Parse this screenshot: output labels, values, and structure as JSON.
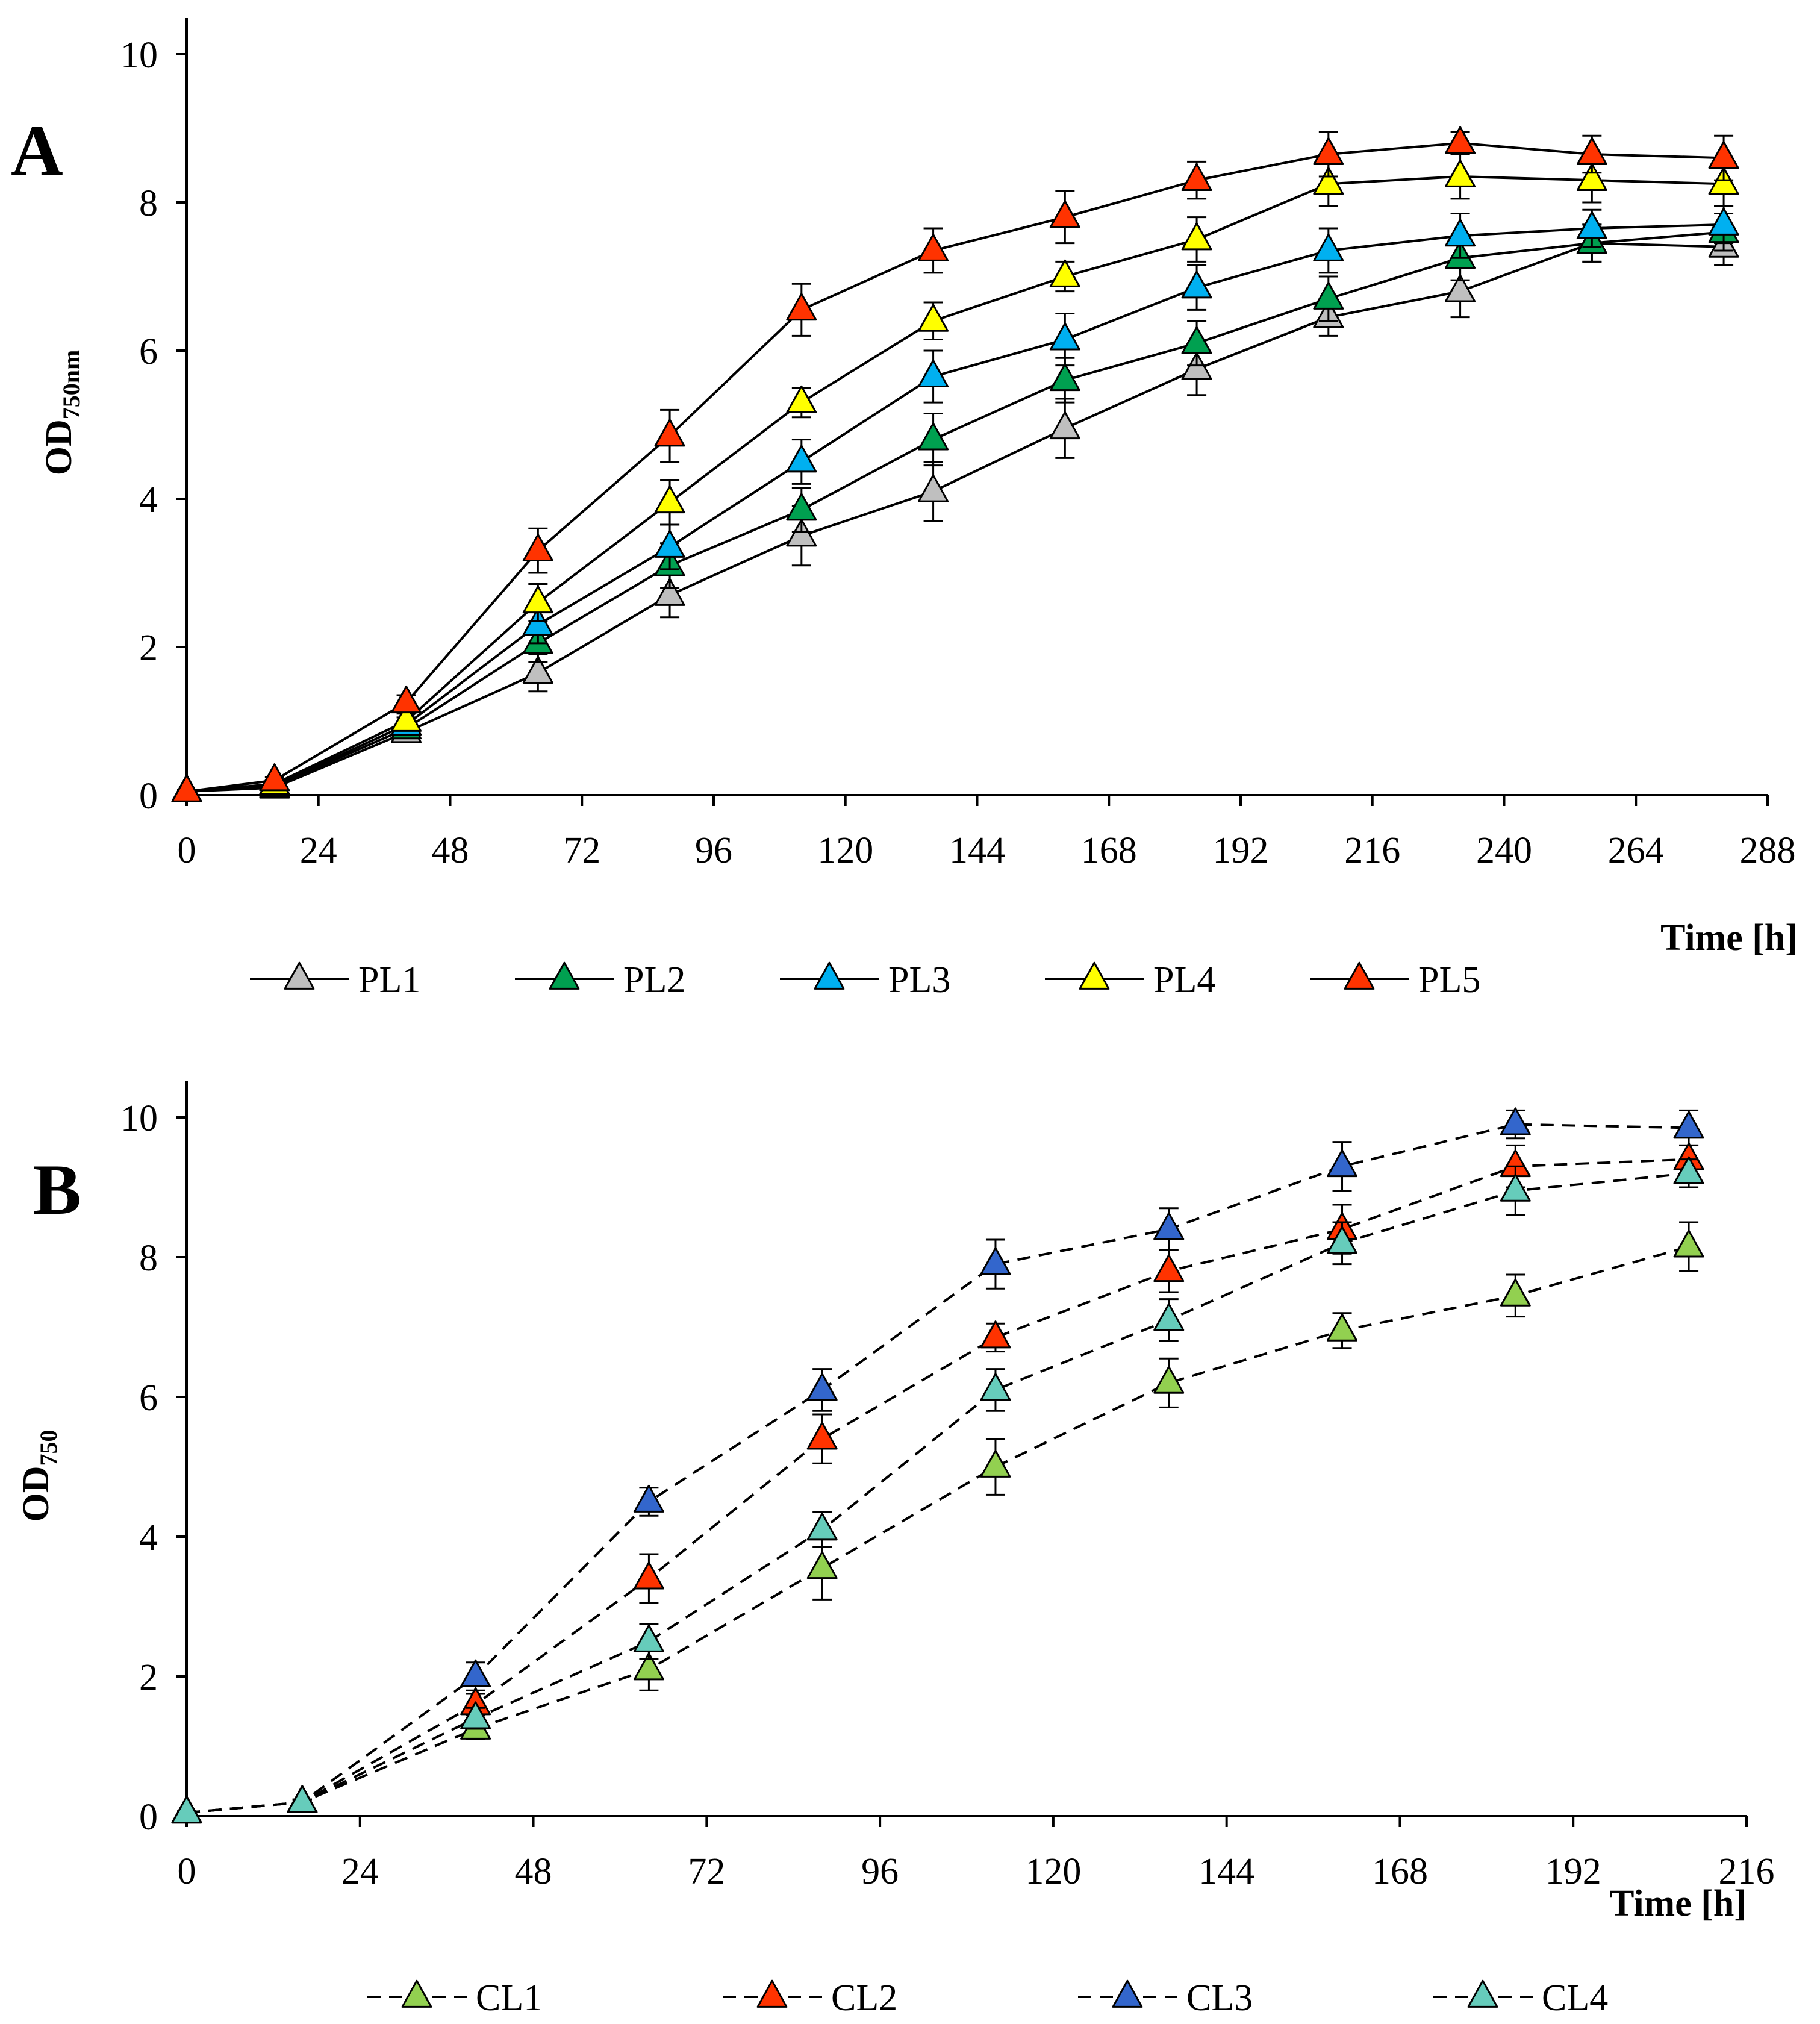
{
  "chart_data": [
    {
      "panel": "A",
      "type": "line",
      "ylabel": "OD",
      "ylabel_sub": "750nm",
      "xlabel": "Time [h]",
      "xlim": [
        0,
        288
      ],
      "ylim": [
        0,
        10
      ],
      "xticks": [
        0,
        24,
        48,
        72,
        96,
        120,
        144,
        168,
        192,
        216,
        240,
        264,
        288
      ],
      "yticks": [
        0,
        2,
        4,
        6,
        8,
        10
      ],
      "line_style": "solid",
      "x": [
        0,
        16,
        40,
        64,
        88,
        112,
        136,
        160,
        184,
        208,
        232,
        256,
        280
      ],
      "series": [
        {
          "name": "PL1",
          "color": "#bfbfbf",
          "values": [
            0.05,
            0.1,
            0.85,
            1.65,
            2.7,
            3.5,
            4.1,
            4.95,
            5.75,
            6.45,
            6.8,
            7.45,
            7.4
          ],
          "errors": [
            0.02,
            0.03,
            0.1,
            0.25,
            0.3,
            0.4,
            0.4,
            0.4,
            0.35,
            0.25,
            0.35,
            0.25,
            0.25
          ]
        },
        {
          "name": "PL2",
          "color": "#00a050",
          "values": [
            0.05,
            0.12,
            0.9,
            2.05,
            3.1,
            3.85,
            4.8,
            5.6,
            6.1,
            6.7,
            7.25,
            7.45,
            7.6
          ],
          "errors": [
            0.02,
            0.03,
            0.1,
            0.25,
            0.3,
            0.3,
            0.35,
            0.3,
            0.3,
            0.3,
            0.3,
            0.25,
            0.25
          ]
        },
        {
          "name": "PL3",
          "color": "#00b0f0",
          "values": [
            0.05,
            0.13,
            0.95,
            2.3,
            3.35,
            4.5,
            5.65,
            6.15,
            6.85,
            7.35,
            7.55,
            7.65,
            7.7
          ],
          "errors": [
            0.02,
            0.03,
            0.1,
            0.25,
            0.3,
            0.3,
            0.35,
            0.35,
            0.3,
            0.3,
            0.3,
            0.25,
            0.25
          ]
        },
        {
          "name": "PL4",
          "color": "#ffff00",
          "values": [
            0.05,
            0.15,
            1.0,
            2.6,
            3.95,
            5.3,
            6.4,
            7.0,
            7.5,
            8.25,
            8.35,
            8.3,
            8.25
          ],
          "errors": [
            0.02,
            0.03,
            0.1,
            0.25,
            0.3,
            0.2,
            0.25,
            0.2,
            0.3,
            0.3,
            0.3,
            0.3,
            0.3
          ]
        },
        {
          "name": "PL5",
          "color": "#ff3300",
          "values": [
            0.05,
            0.2,
            1.25,
            3.3,
            4.85,
            6.55,
            7.35,
            7.8,
            8.3,
            8.65,
            8.8,
            8.65,
            8.6
          ],
          "errors": [
            0.02,
            0.04,
            0.1,
            0.3,
            0.35,
            0.35,
            0.3,
            0.35,
            0.25,
            0.3,
            0.15,
            0.25,
            0.3
          ]
        }
      ]
    },
    {
      "panel": "B",
      "type": "line",
      "ylabel": "OD",
      "ylabel_sub": "750",
      "xlabel": "Time [h]",
      "xlim": [
        0,
        216
      ],
      "ylim": [
        0,
        10
      ],
      "xticks": [
        0,
        24,
        48,
        72,
        96,
        120,
        144,
        168,
        192,
        216
      ],
      "yticks": [
        0,
        2,
        4,
        6,
        8,
        10
      ],
      "line_style": "dashed",
      "x": [
        0,
        16,
        40,
        64,
        88,
        112,
        136,
        160,
        184,
        208
      ],
      "series": [
        {
          "name": "CL1",
          "color": "#92d050",
          "values": [
            0.05,
            0.2,
            1.25,
            2.1,
            3.55,
            5.0,
            6.2,
            6.95,
            7.45,
            8.15
          ],
          "errors": [
            0.02,
            0.04,
            0.15,
            0.3,
            0.45,
            0.4,
            0.35,
            0.25,
            0.3,
            0.35
          ]
        },
        {
          "name": "CL2",
          "color": "#ff3300",
          "values": [
            0.05,
            0.2,
            1.6,
            3.4,
            5.4,
            6.85,
            7.8,
            8.4,
            9.3,
            9.4
          ],
          "errors": [
            0.02,
            0.04,
            0.15,
            0.35,
            0.35,
            0.2,
            0.3,
            0.35,
            0.3,
            0.2
          ]
        },
        {
          "name": "CL3",
          "color": "#3366cc",
          "values": [
            0.05,
            0.2,
            2.0,
            4.5,
            6.1,
            7.9,
            8.4,
            9.3,
            9.9,
            9.85
          ],
          "errors": [
            0.02,
            0.04,
            0.2,
            0.2,
            0.3,
            0.35,
            0.3,
            0.35,
            0.2,
            0.25
          ]
        },
        {
          "name": "CL4",
          "color": "#66ccbb",
          "values": [
            0.05,
            0.2,
            1.4,
            2.5,
            4.1,
            6.1,
            7.1,
            8.2,
            8.95,
            9.2
          ],
          "errors": [
            0.02,
            0.04,
            0.15,
            0.25,
            0.25,
            0.3,
            0.3,
            0.3,
            0.35,
            0.2
          ]
        }
      ]
    }
  ]
}
